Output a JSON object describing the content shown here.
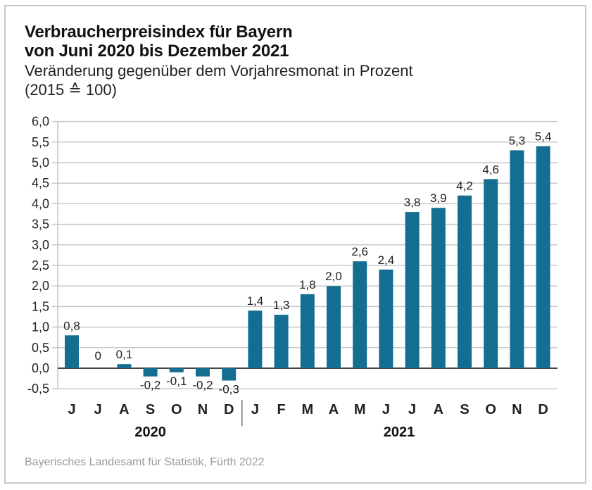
{
  "chart_data": {
    "type": "bar",
    "title": "Verbraucherpreisindex für Bayern von Juni 2020 bis Dezember 2021",
    "title_lines": [
      "Verbraucherpreisindex für Bayern",
      "von Juni 2020 bis Dezember 2021"
    ],
    "subtitle_lines": [
      "Veränderung gegenüber dem Vorjahresmonat in Prozent",
      "(2015 ≙ 100)"
    ],
    "xlabel": "",
    "ylabel": "",
    "ylim": [
      -0.5,
      6.0
    ],
    "yticks": [
      -0.5,
      0.0,
      0.5,
      1.0,
      1.5,
      2.0,
      2.5,
      3.0,
      3.5,
      4.0,
      4.5,
      5.0,
      5.5,
      6.0
    ],
    "ytick_labels": [
      "-0,5",
      "0,0",
      "0,5",
      "1,0",
      "1,5",
      "2,0",
      "2,5",
      "3,0",
      "3,5",
      "4,0",
      "4,5",
      "5,0",
      "5,5",
      "6,0"
    ],
    "grid": true,
    "categories": [
      "J",
      "J",
      "A",
      "S",
      "O",
      "N",
      "D",
      "J",
      "F",
      "M",
      "A",
      "M",
      "J",
      "J",
      "A",
      "S",
      "O",
      "N",
      "D"
    ],
    "values": [
      0.8,
      0,
      0.1,
      -0.2,
      -0.1,
      -0.2,
      -0.3,
      1.4,
      1.3,
      1.8,
      2.0,
      2.6,
      2.4,
      3.8,
      3.9,
      4.2,
      4.6,
      5.3,
      5.4
    ],
    "data_labels": [
      "0,8",
      "0",
      "0,1",
      "-0,2",
      "-0,1",
      "-0,2",
      "-0,3",
      "1,4",
      "1,3",
      "1,8",
      "2,0",
      "2,6",
      "2,4",
      "3,8",
      "3,9",
      "4,2",
      "4,6",
      "5,3",
      "5,4"
    ],
    "groups": [
      {
        "label": "2020",
        "start": 0,
        "end": 6
      },
      {
        "label": "2021",
        "start": 7,
        "end": 18
      }
    ],
    "bar_color": "#146e92",
    "source": "Bayerisches Landesamt für Statistik, Fürth 2022"
  }
}
